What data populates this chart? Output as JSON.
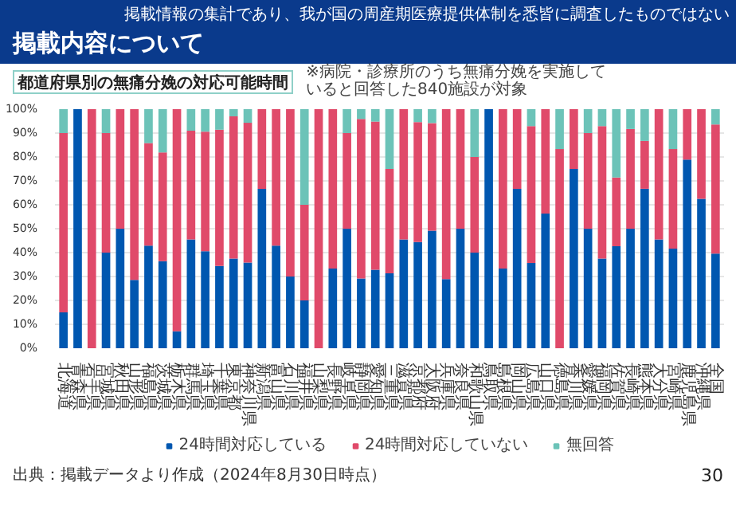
{
  "chart_data": {
    "type": "bar",
    "stacked": true,
    "title": "掲載内容について",
    "subtitle": "都道府県別の無痛分娩の対応可能時間",
    "annotations": [
      "掲載情報の集計であり、我が国の周産期医療提供体制を悉皆に調査したものではない",
      "※病院・診療所のうち無痛分娩を実施していると回答した840施設が対象",
      "出典：掲載データより作成（2024年8月30日時点）",
      "30"
    ],
    "categories": [
      "北海道",
      "青森県",
      "岩手県",
      "宮城県",
      "秋田県",
      "山形県",
      "福島県",
      "茨城県",
      "栃木県",
      "群馬県",
      "埼玉県",
      "千葉県",
      "東京都",
      "神奈川県",
      "新潟県",
      "富山県",
      "石川県",
      "福井県",
      "山梨県",
      "長野県",
      "岐阜県",
      "静岡県",
      "愛知県",
      "三重県",
      "滋賀県",
      "京都府",
      "大阪府",
      "兵庫県",
      "奈良県",
      "和歌山県",
      "鳥取県",
      "島根県",
      "岡山県",
      "広島県",
      "山口県",
      "徳島県",
      "香川県",
      "愛媛県",
      "福岡県",
      "佐賀県",
      "長崎県",
      "熊本県",
      "大分県",
      "宮崎県",
      "鹿児島県",
      "沖縄県",
      "全国"
    ],
    "series": [
      {
        "name": "24時間対応している",
        "color": "#0057b0",
        "values": [
          15,
          100,
          0,
          40,
          50,
          28.6,
          42.9,
          36.4,
          7.1,
          45.5,
          40.6,
          34.4,
          37.5,
          35.8,
          66.7,
          42.9,
          30,
          20,
          0,
          33.3,
          50,
          29.2,
          32.8,
          31.3,
          45.5,
          44.4,
          49.2,
          28.9,
          50,
          40,
          100,
          33.3,
          66.7,
          35.7,
          56.3,
          0,
          75,
          50,
          37.5,
          42.7,
          50,
          66.7,
          45.5,
          41.7,
          78.9,
          62.5,
          39.6
        ]
      },
      {
        "name": "24時間対応していない",
        "color": "#e04a6a",
        "values": [
          75,
          0,
          100,
          50,
          50,
          71.4,
          42.9,
          45.5,
          92.9,
          45.5,
          50,
          57,
          59.5,
          58.5,
          33.3,
          57.1,
          70,
          40,
          100,
          66.7,
          40,
          66.7,
          62,
          43.7,
          54.5,
          50.2,
          45,
          71.1,
          50,
          40,
          0,
          66.7,
          33.3,
          57.2,
          43.7,
          83.3,
          25,
          40,
          55.4,
          28.7,
          41.7,
          20,
          54.5,
          41.6,
          21.1,
          37.5,
          54
        ]
      },
      {
        "name": "無回答",
        "color": "#6cc3b8",
        "values": [
          10,
          0,
          0,
          10,
          0,
          0,
          14.3,
          18.2,
          0,
          9.1,
          9.4,
          8.6,
          3,
          5.7,
          0,
          0,
          0,
          40,
          0,
          0,
          10,
          4.2,
          5.2,
          25,
          0,
          5.4,
          5.8,
          0,
          0,
          20,
          0,
          0,
          0,
          7.1,
          0,
          16.7,
          0,
          10,
          7.1,
          28.6,
          8.3,
          13.3,
          0,
          16.7,
          0,
          0,
          6.4
        ]
      }
    ],
    "ylim": [
      0,
      100
    ],
    "yticks": [
      {
        "value": 0,
        "label": "0%"
      },
      {
        "value": 10,
        "label": "10%"
      },
      {
        "value": 20,
        "label": "20%"
      },
      {
        "value": 30,
        "label": "30%"
      },
      {
        "value": 40,
        "label": "40%"
      },
      {
        "value": 50,
        "label": "50%"
      },
      {
        "value": 60,
        "label": "60%"
      },
      {
        "value": 70,
        "label": "70%"
      },
      {
        "value": 80,
        "label": "80%"
      },
      {
        "value": 90,
        "label": "90%"
      },
      {
        "value": 100,
        "label": "100%"
      }
    ],
    "grid": "y",
    "legend": "bottom"
  }
}
